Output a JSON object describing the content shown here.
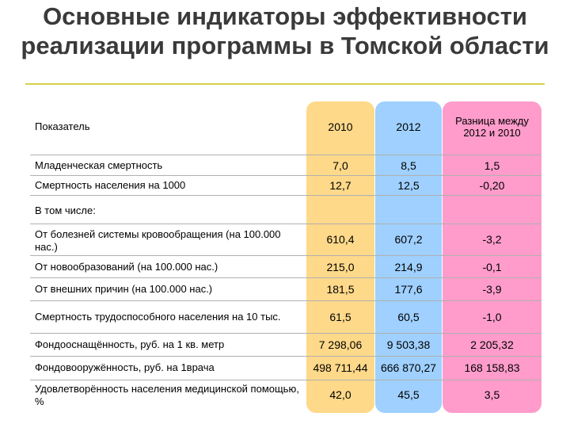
{
  "title": "Основные индикаторы эффективности реализации программы в Томской области",
  "table": {
    "headers": {
      "indicator": "Показатель",
      "y2010": "2010",
      "y2012": "2012",
      "diff": "Разница между 2012 и 2010"
    },
    "rows": [
      {
        "label": "Младенческая смертность",
        "v2010": "7,0",
        "v2012": "8,5",
        "diff": "1,5"
      },
      {
        "label": "Смертность населения на 1000",
        "v2010": "12,7",
        "v2012": "12,5",
        "diff": "-0,20"
      },
      {
        "label": "В том числе:",
        "v2010": "",
        "v2012": "",
        "diff": ""
      },
      {
        "label": "От болезней системы кровообращения (на 100.000 нас.)",
        "v2010": "610,4",
        "v2012": "607,2",
        "diff": "-3,2"
      },
      {
        "label": "От новообразований (на 100.000 нас.)",
        "v2010": "215,0",
        "v2012": "214,9",
        "diff": "-0,1"
      },
      {
        "label": "От внешних причин (на 100.000 нас.)",
        "v2010": "181,5",
        "v2012": "177,6",
        "diff": "-3,9"
      },
      {
        "label": "Смертность трудоспособного населения на 10 тыс.",
        "v2010": "61,5",
        "v2012": "60,5",
        "diff": "-1,0"
      },
      {
        "label": "Фондооснащённость, руб. на 1 кв. метр",
        "v2010": "7 298,06",
        "v2012": "9 503,38",
        "diff": "2 205,32"
      },
      {
        "label": "Фондовооружённость, руб. на 1врача",
        "v2010": "498 711,44",
        "v2012": "666 870,27",
        "diff": "168 158,83"
      },
      {
        "label": "Удовлетворённость населения медицинской помощью, %",
        "v2010": "42,0",
        "v2012": "45,5",
        "diff": "3,5"
      }
    ]
  },
  "colors": {
    "col2010": "#ffd98a",
    "col2012": "#9fd0ff",
    "colDiff": "#ff9ccb",
    "titleRule": "#d7d14a"
  }
}
